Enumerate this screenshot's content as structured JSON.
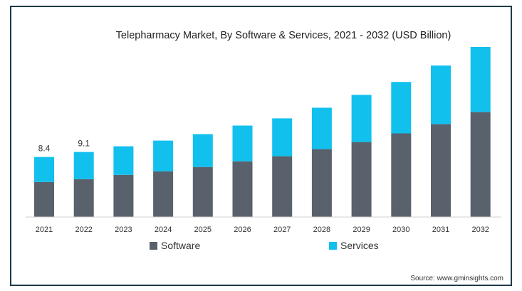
{
  "chart_data": {
    "type": "bar",
    "stacked": true,
    "title": "Telepharmacy Market, By Software & Services, 2021 - 2032 (USD Billion)",
    "xlabel": "",
    "ylabel": "",
    "categories": [
      "2021",
      "2022",
      "2023",
      "2024",
      "2025",
      "2026",
      "2027",
      "2028",
      "2029",
      "2030",
      "2031",
      "2032"
    ],
    "series": [
      {
        "name": "Software",
        "color": "#59616c",
        "values": [
          4.9,
          5.3,
          5.9,
          6.4,
          7.0,
          7.8,
          8.5,
          9.5,
          10.5,
          11.7,
          13.0,
          14.7
        ]
      },
      {
        "name": "Services",
        "color": "#12c0ee",
        "values": [
          3.5,
          3.8,
          4.0,
          4.3,
          4.6,
          5.0,
          5.3,
          5.8,
          6.6,
          7.2,
          8.2,
          9.1
        ]
      }
    ],
    "data_labels": [
      {
        "category": "2021",
        "text": "8.4"
      },
      {
        "category": "2022",
        "text": "9.1"
      }
    ],
    "ylim": [
      0,
      24
    ],
    "grid": false,
    "legend": "bottom",
    "source": "Source: www.gminsights.com"
  }
}
